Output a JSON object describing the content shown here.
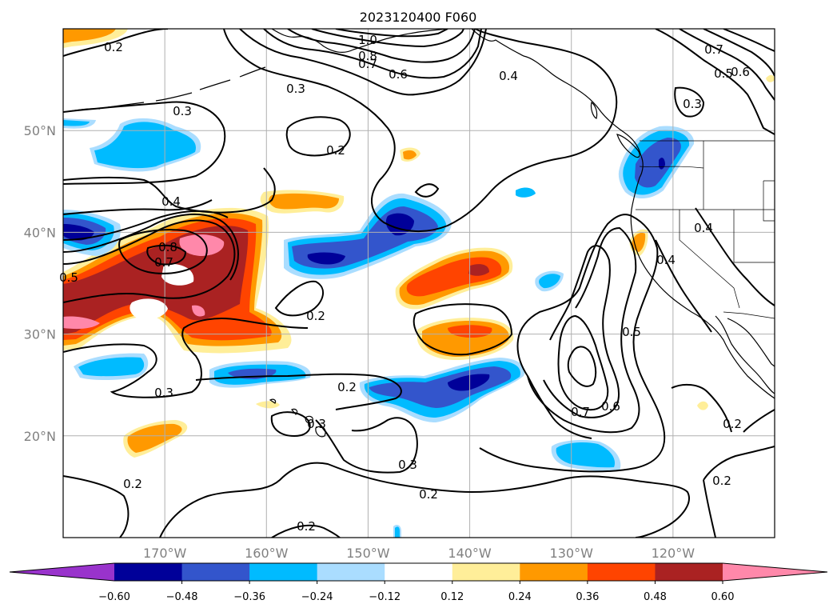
{
  "title": "2023120400 F060",
  "map": {
    "lon_range": [
      -180,
      -110
    ],
    "lat_range": [
      10,
      60
    ],
    "grid_lons": [
      -170,
      -160,
      -150,
      -140,
      -130,
      -120
    ],
    "grid_lats": [
      20,
      30,
      40,
      50
    ],
    "lon_labels": [
      "170°W",
      "160°W",
      "150°W",
      "140°W",
      "130°W",
      "120°W"
    ],
    "lat_labels": [
      "20°N",
      "30°N",
      "40°N",
      "50°N"
    ],
    "gridlines": true,
    "coastlines": true,
    "state_borders": true
  },
  "colorbar": {
    "tick_labels": [
      "−0.60",
      "−0.48",
      "−0.36",
      "−0.24",
      "−0.12",
      "0.12",
      "0.24",
      "0.36",
      "0.48",
      "0.60"
    ],
    "colors": [
      "#9933cc",
      "#000099",
      "#3355cc",
      "#00bbff",
      "#aaddff",
      "#ffffff",
      "#ffee99",
      "#ff9900",
      "#ff4400",
      "#aa2222",
      "#ff88aa"
    ],
    "extend": "both"
  },
  "contour_labels": [
    "1.0",
    "0.8",
    "0.7",
    "0.6",
    "0.5",
    "0.4",
    "0.3",
    "0.2"
  ],
  "chart_data": {
    "type": "heatmap",
    "title": "2023120400 F060",
    "xlabel": "",
    "ylabel": "",
    "xlim": [
      -180,
      -110
    ],
    "ylim": [
      10,
      60
    ],
    "filled_levels": [
      -0.6,
      -0.48,
      -0.36,
      -0.24,
      -0.12,
      0.12,
      0.24,
      0.36,
      0.48,
      0.6
    ],
    "contour_levels": [
      0.2,
      0.3,
      0.4,
      0.5,
      0.6,
      0.7,
      0.8,
      1.0
    ]
  }
}
